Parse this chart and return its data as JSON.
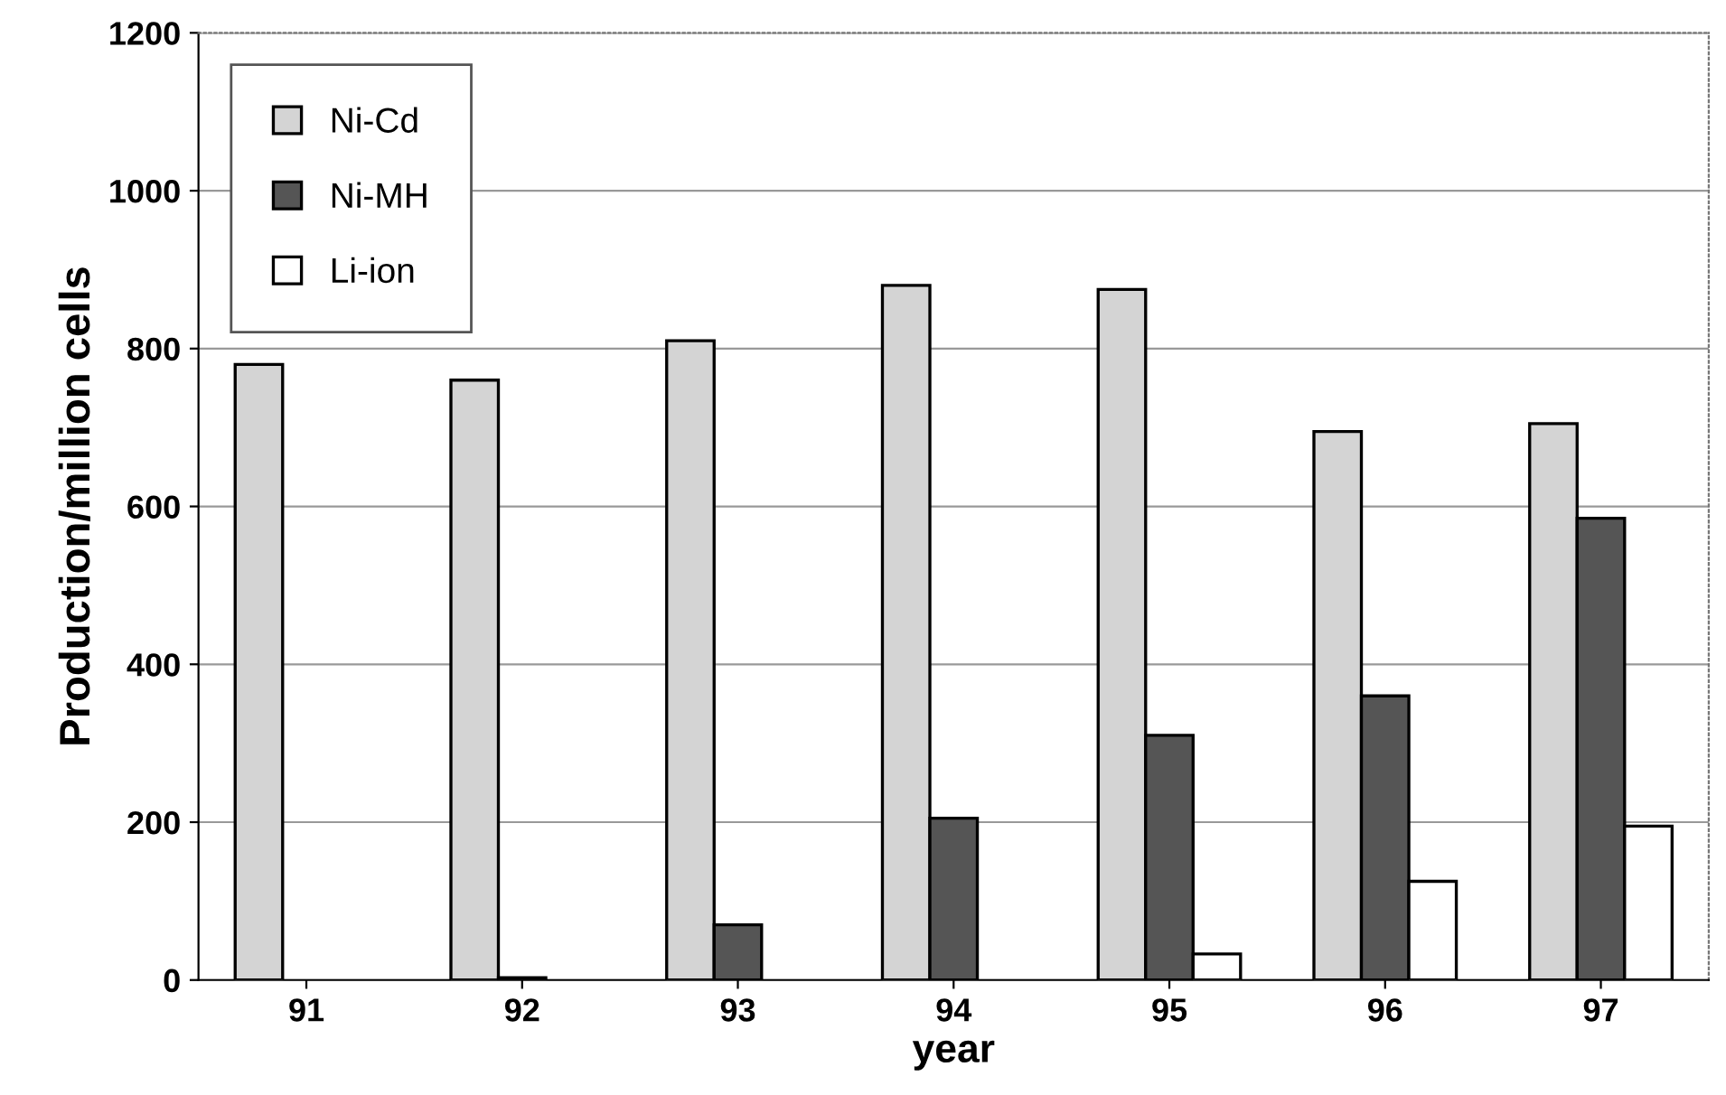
{
  "chart_data": {
    "type": "bar",
    "xlabel": "year",
    "ylabel": "Production/million cells",
    "categories": [
      "91",
      "92",
      "93",
      "94",
      "95",
      "96",
      "97"
    ],
    "series": [
      {
        "name": "Ni-Cd",
        "color": "#d4d4d4",
        "values": [
          780,
          760,
          810,
          880,
          875,
          695,
          705
        ]
      },
      {
        "name": "Ni-MH",
        "color": "#555555",
        "values": [
          null,
          3,
          70,
          205,
          310,
          360,
          585
        ]
      },
      {
        "name": "Li-ion",
        "color": "#ffffff",
        "values": [
          null,
          null,
          null,
          null,
          33,
          125,
          195
        ]
      }
    ],
    "ylim": [
      0,
      1200
    ],
    "yticks": [
      0,
      200,
      400,
      600,
      800,
      1000,
      1200
    ],
    "grid": "y",
    "legend": "top left"
  }
}
